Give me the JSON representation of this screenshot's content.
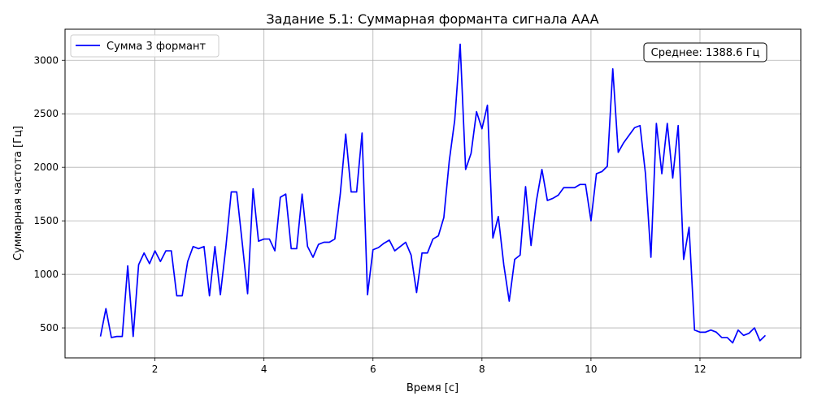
{
  "chart_data": {
    "type": "line",
    "title": "Задание 5.1: Суммарная форманта сигнала AAA",
    "xlabel": "Время [с]",
    "ylabel": "Суммарная частота [Гц]",
    "xlim": [
      0.35,
      13.85
    ],
    "ylim": [
      220,
      3290
    ],
    "xticks": [
      2,
      4,
      6,
      8,
      10,
      12
    ],
    "yticks": [
      500,
      1000,
      1500,
      2000,
      2500,
      3000
    ],
    "grid": true,
    "legend_position": "top-left",
    "annotation": "Среднее: 1388.6 Гц",
    "annotation_position": "top-right",
    "series": [
      {
        "name": "Сумма 3 формант",
        "color": "#0000ff",
        "x": [
          1.0,
          1.1,
          1.2,
          1.3,
          1.4,
          1.5,
          1.6,
          1.7,
          1.8,
          1.9,
          2.0,
          2.1,
          2.2,
          2.3,
          2.4,
          2.5,
          2.6,
          2.7,
          2.8,
          2.9,
          3.0,
          3.1,
          3.2,
          3.3,
          3.4,
          3.5,
          3.6,
          3.7,
          3.8,
          3.9,
          4.0,
          4.1,
          4.2,
          4.3,
          4.4,
          4.5,
          4.6,
          4.7,
          4.8,
          4.9,
          5.0,
          5.1,
          5.2,
          5.3,
          5.4,
          5.5,
          5.6,
          5.7,
          5.8,
          5.9,
          6.0,
          6.1,
          6.2,
          6.3,
          6.4,
          6.5,
          6.6,
          6.7,
          6.8,
          6.9,
          7.0,
          7.1,
          7.2,
          7.3,
          7.4,
          7.5,
          7.6,
          7.7,
          7.8,
          7.9,
          8.0,
          8.1,
          8.2,
          8.3,
          8.4,
          8.5,
          8.6,
          8.7,
          8.8,
          8.9,
          9.0,
          9.1,
          9.2,
          9.3,
          9.4,
          9.5,
          9.6,
          9.7,
          9.8,
          9.9,
          10.0,
          10.1,
          10.2,
          10.3,
          10.4,
          10.5,
          10.6,
          10.7,
          10.8,
          10.9,
          11.0,
          11.1,
          11.2,
          11.3,
          11.4,
          11.5,
          11.6,
          11.7,
          11.8,
          11.9,
          12.0,
          12.1,
          12.2,
          12.3,
          12.4,
          12.5,
          12.6,
          12.7,
          12.8,
          12.9,
          13.0,
          13.1,
          13.2
        ],
        "y": [
          420,
          680,
          410,
          420,
          420,
          1080,
          420,
          1090,
          1200,
          1100,
          1220,
          1120,
          1220,
          1220,
          800,
          800,
          1120,
          1260,
          1240,
          1260,
          800,
          1260,
          810,
          1250,
          1770,
          1770,
          1300,
          820,
          1800,
          1310,
          1330,
          1330,
          1220,
          1720,
          1750,
          1240,
          1240,
          1750,
          1260,
          1160,
          1280,
          1300,
          1300,
          1330,
          1750,
          2310,
          1770,
          1770,
          2320,
          810,
          1230,
          1250,
          1290,
          1320,
          1220,
          1260,
          1300,
          1180,
          830,
          1200,
          1200,
          1330,
          1360,
          1530,
          2060,
          2440,
          3150,
          1980,
          2130,
          2520,
          2360,
          2580,
          1340,
          1540,
          1090,
          750,
          1140,
          1180,
          1820,
          1270,
          1690,
          1980,
          1690,
          1710,
          1740,
          1810,
          1810,
          1810,
          1840,
          1840,
          1500,
          1940,
          1960,
          2010,
          2920,
          2140,
          2230,
          2300,
          2370,
          2390,
          1940,
          1160,
          2410,
          1940,
          2410,
          1900,
          2390,
          1140,
          1440,
          480,
          460,
          460,
          480,
          460,
          410,
          410,
          360,
          480,
          430,
          450,
          500,
          380,
          430
        ]
      }
    ]
  }
}
